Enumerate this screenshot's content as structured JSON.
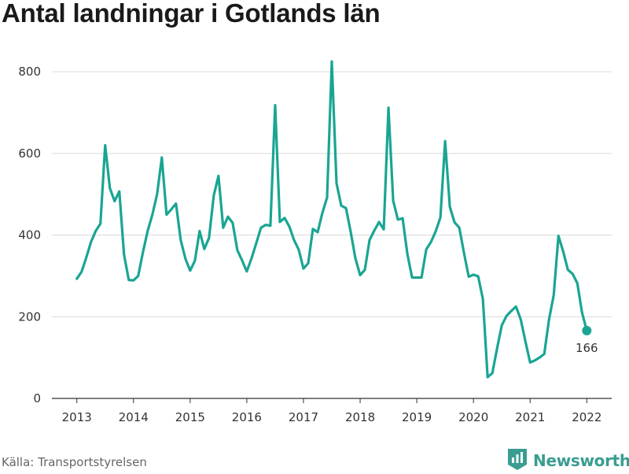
{
  "title": "Antal landningar i Gotlands län",
  "source": "Källa: Transportstyrelsen",
  "brand": {
    "name": "Newsworthy",
    "icon": "bar-chart-logo-icon",
    "color": "#3a9d91"
  },
  "chart_data": {
    "type": "line",
    "title": "Antal landningar i Gotlands län",
    "xlabel": "",
    "ylabel": "",
    "x_ticks": [
      "2013",
      "2014",
      "2015",
      "2016",
      "2017",
      "2018",
      "2019",
      "2020",
      "2021",
      "2022"
    ],
    "y_ticks": [
      0,
      200,
      400,
      600,
      800
    ],
    "ylim": [
      0,
      860
    ],
    "xlim": [
      2012.56,
      2022.44
    ],
    "grid": true,
    "line_color": "#1aa593",
    "series": [
      {
        "start": "2013-01",
        "values": [
          293,
          310,
          345,
          383,
          410,
          428,
          620,
          515,
          483,
          507,
          352,
          290,
          289,
          300,
          358,
          410,
          450,
          500,
          590,
          450,
          463,
          477,
          388,
          342,
          313,
          337,
          410,
          366,
          393,
          497,
          545,
          418,
          445,
          430,
          363,
          338,
          311,
          343,
          380,
          418,
          425,
          423,
          718,
          432,
          442,
          421,
          388,
          364,
          318,
          331,
          415,
          407,
          454,
          492,
          825,
          527,
          472,
          466,
          408,
          343,
          302,
          315,
          388,
          411,
          432,
          414,
          712,
          484,
          438,
          441,
          354,
          296,
          296,
          296,
          365,
          383,
          409,
          443,
          630,
          469,
          431,
          418,
          356,
          298,
          303,
          299,
          243,
          52,
          62,
          122,
          179,
          202,
          214,
          225,
          194,
          140,
          88,
          93,
          100,
          109,
          193,
          253,
          398,
          360,
          315,
          305,
          282,
          210,
          166
        ]
      }
    ],
    "annotations": [
      {
        "label": "166",
        "value": 166,
        "date": "2022-01"
      }
    ]
  }
}
